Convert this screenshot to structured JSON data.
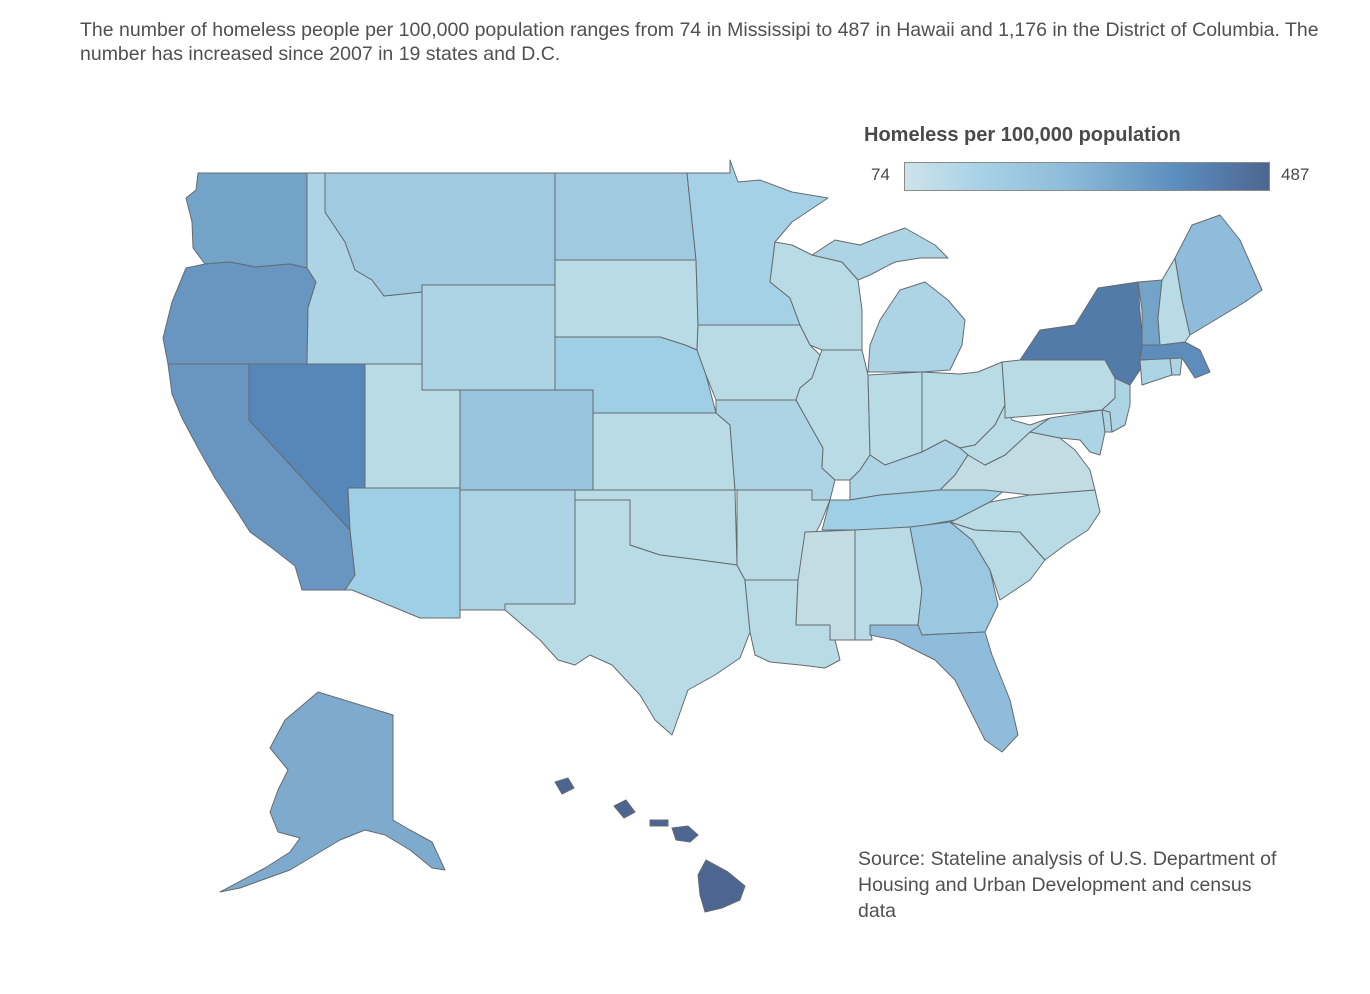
{
  "intro": "The number of homeless people per 100,000 population ranges from 74 in Mississipi to 487 in Hawaii and 1,176 in the District of Columbia. The number has increased since 2007 in 19 states and D.C.",
  "legend": {
    "title": "Homeless per 100,000 population",
    "min_label": "74",
    "max_label": "487",
    "min": 74,
    "max": 487,
    "colors": [
      "#cfe3ea",
      "#a9d2e6",
      "#8cbbd9",
      "#5b8dbd",
      "#4d6691"
    ]
  },
  "source": "Source: Stateline analysis of U.S. Department of Housing and Urban Development and census data",
  "states": {
    "WA": {
      "name": "Washington",
      "color": "#74a3c8"
    },
    "OR": {
      "name": "Oregon",
      "color": "#6896c1"
    },
    "CA": {
      "name": "California",
      "color": "#6896c1"
    },
    "NV": {
      "name": "Nevada",
      "color": "#5787b9"
    },
    "ID": {
      "name": "Idaho",
      "color": "#acd4e5"
    },
    "MT": {
      "name": "Montana",
      "color": "#a0cae0"
    },
    "WY": {
      "name": "Wyoming",
      "color": "#acd4e5"
    },
    "UT": {
      "name": "Utah",
      "color": "#b9dbe5"
    },
    "CO": {
      "name": "Colorado",
      "color": "#98c4de"
    },
    "AZ": {
      "name": "Arizona",
      "color": "#9fcfe5"
    },
    "NM": {
      "name": "New Mexico",
      "color": "#acd4e5"
    },
    "ND": {
      "name": "North Dakota",
      "color": "#a0cae0"
    },
    "SD": {
      "name": "South Dakota",
      "color": "#b9dbe5"
    },
    "NE": {
      "name": "Nebraska",
      "color": "#9fcfe5"
    },
    "KS": {
      "name": "Kansas",
      "color": "#b9dbe5"
    },
    "OK": {
      "name": "Oklahoma",
      "color": "#b9dbe5"
    },
    "TX": {
      "name": "Texas",
      "color": "#b9dbe5"
    },
    "MN": {
      "name": "Minnesota",
      "color": "#a4d1e6"
    },
    "IA": {
      "name": "Iowa",
      "color": "#b9dbe5"
    },
    "MO": {
      "name": "Missouri",
      "color": "#acd4e5"
    },
    "AR": {
      "name": "Arkansas",
      "color": "#b9dbe5"
    },
    "LA": {
      "name": "Louisiana",
      "color": "#b9dbe5"
    },
    "WI": {
      "name": "Wisconsin",
      "color": "#b9dbe5"
    },
    "IL": {
      "name": "Illinois",
      "color": "#b9dbe5"
    },
    "MI": {
      "name": "Michigan",
      "color": "#acd4e5"
    },
    "IN": {
      "name": "Indiana",
      "color": "#b9dbe5"
    },
    "OH": {
      "name": "Ohio",
      "color": "#b9dbe5"
    },
    "KY": {
      "name": "Kentucky",
      "color": "#acd4e5"
    },
    "TN": {
      "name": "Tennessee",
      "color": "#9fcfe5"
    },
    "MS": {
      "name": "Mississippi",
      "color": "#c3dbe2"
    },
    "AL": {
      "name": "Alabama",
      "color": "#b9dbe5"
    },
    "GA": {
      "name": "Georgia",
      "color": "#9ac8e1"
    },
    "FL": {
      "name": "Florida",
      "color": "#8fbcda"
    },
    "SC": {
      "name": "South Carolina",
      "color": "#b9dbe5"
    },
    "NC": {
      "name": "North Carolina",
      "color": "#b9dbe5"
    },
    "VA": {
      "name": "Virginia",
      "color": "#c3dbe2"
    },
    "WV": {
      "name": "West Virginia",
      "color": "#b9dbe5"
    },
    "MD": {
      "name": "Maryland",
      "color": "#acd4e5"
    },
    "DE": {
      "name": "Delaware",
      "color": "#acd4e5"
    },
    "PA": {
      "name": "Pennsylvania",
      "color": "#b9dbe5"
    },
    "NJ": {
      "name": "New Jersey",
      "color": "#acd4e5"
    },
    "NY": {
      "name": "New York",
      "color": "#527ba9"
    },
    "CT": {
      "name": "Connecticut",
      "color": "#acd4e5"
    },
    "RI": {
      "name": "Rhode Island",
      "color": "#acd4e5"
    },
    "MA": {
      "name": "Massachusetts",
      "color": "#5e8dbc"
    },
    "VT": {
      "name": "Vermont",
      "color": "#74a3c8"
    },
    "NH": {
      "name": "New Hampshire",
      "color": "#b9dbe5"
    },
    "ME": {
      "name": "Maine",
      "color": "#8fbcda"
    },
    "AK": {
      "name": "Alaska",
      "color": "#7eaace"
    },
    "HI": {
      "name": "Hawaii",
      "color": "#4d6691"
    }
  }
}
